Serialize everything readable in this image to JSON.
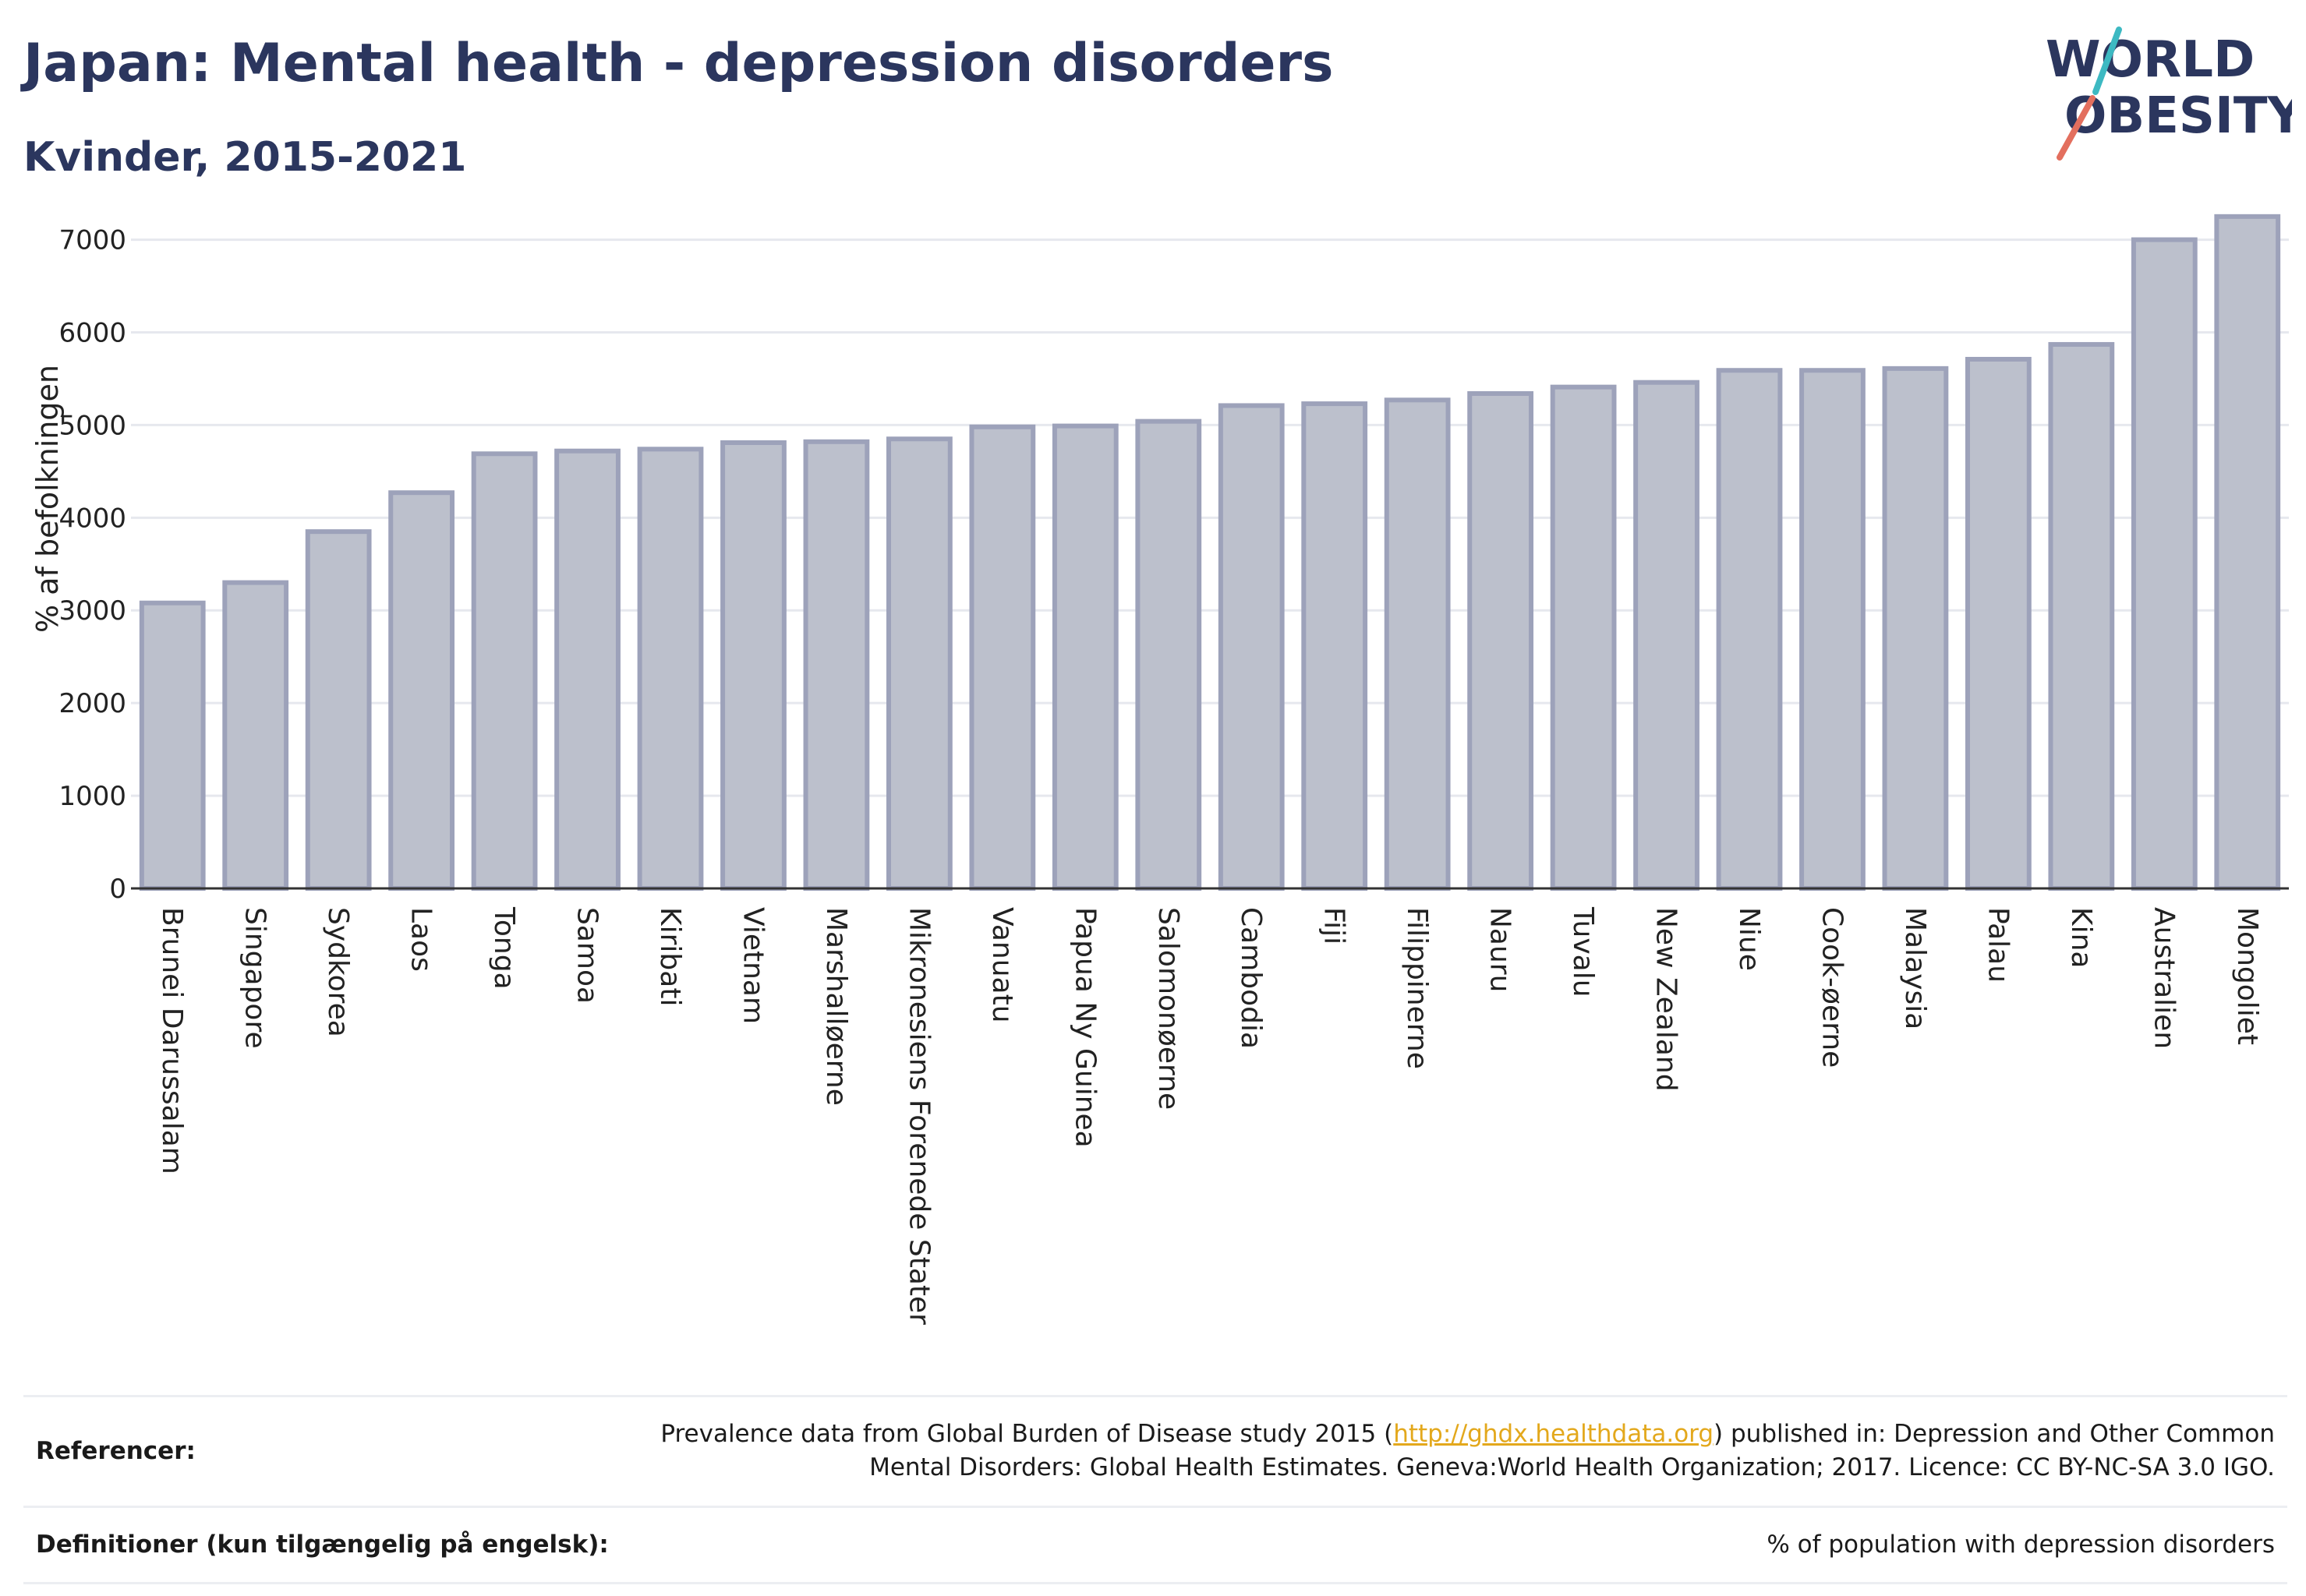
{
  "header": {
    "title": "Japan: Mental health - depression disorders",
    "subtitle": "Kvinder, 2015-2021"
  },
  "logo": {
    "line1": "WORLD",
    "line2": "OBESITY"
  },
  "chart_data": {
    "type": "bar",
    "ylabel": "% af befolkningen",
    "ylim": [
      0,
      7400
    ],
    "yticks": [
      0,
      1000,
      2000,
      3000,
      4000,
      5000,
      6000,
      7000
    ],
    "grid": true,
    "categories": [
      "Brunei Darussalam",
      "Singapore",
      "Sydkorea",
      "Laos",
      "Tonga",
      "Samoa",
      "Kiribati",
      "Vietnam",
      "Marshalløerne",
      "Mikronesiens Forenede Stater",
      "Vanuatu",
      "Papua Ny Guinea",
      "Salomonøerne",
      "Cambodia",
      "Fiji",
      "Filippinerne",
      "Nauru",
      "Tuvalu",
      "New Zealand",
      "Niue",
      "Cook-øerne",
      "Malaysia",
      "Palau",
      "Kina",
      "Australien",
      "Mongoliet"
    ],
    "values": [
      3080,
      3300,
      3850,
      4270,
      4690,
      4720,
      4740,
      4810,
      4820,
      4850,
      4980,
      4990,
      5040,
      5210,
      5230,
      5270,
      5340,
      5410,
      5460,
      5590,
      5590,
      5610,
      5710,
      5870,
      7000,
      7250
    ],
    "colors": {
      "bar_fill": "#bcc0cc",
      "bar_stroke": "#9da2ba",
      "grid": "#e6e8ee",
      "axis": "#333333"
    }
  },
  "footer": {
    "references_label": "Referencer:",
    "references_pre": "Prevalence data from Global Burden of Disease study 2015 (",
    "references_link": "http://ghdx.healthdata.org",
    "references_post": ") published in: Depression and Other Common Mental Disorders: Global Health Estimates. Geneva:World Health Organization; 2017. Licence: CC BY-NC-SA 3.0 IGO.",
    "definitions_label": "Definitioner (kun tilgængelig på engelsk):",
    "definitions_text": "% of population with depression disorders"
  }
}
